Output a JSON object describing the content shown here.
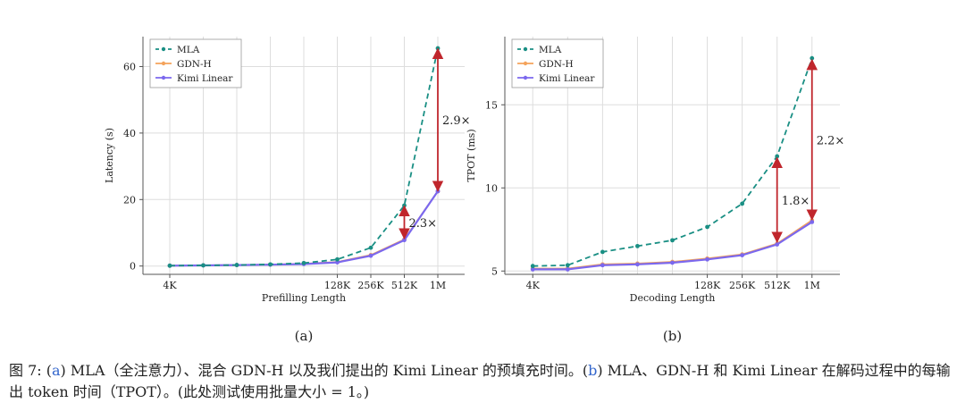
{
  "colors": {
    "mla": "#1a8f84",
    "gdn": "#f4a35c",
    "kimi": "#7b68ee",
    "arrow": "#c0262c",
    "grid": "#dddddd",
    "axis": "#555555"
  },
  "chart_data": [
    {
      "type": "line",
      "panel": "a",
      "panel_label": "(a)",
      "xlabel": "Prefilling Length",
      "ylabel": "Latency (s)",
      "x": [
        1,
        2,
        3,
        4,
        5,
        6,
        7,
        8,
        9
      ],
      "xlim": [
        0.2,
        9.8
      ],
      "ylim": [
        -2.5,
        69
      ],
      "xticks": [
        {
          "x": 1,
          "label": "4K"
        },
        {
          "x": 6,
          "label": "128K"
        },
        {
          "x": 7,
          "label": "256K"
        },
        {
          "x": 8,
          "label": "512K"
        },
        {
          "x": 9,
          "label": "1M"
        }
      ],
      "xgrid": [
        1,
        2,
        3,
        4,
        5,
        6,
        7,
        8,
        9
      ],
      "yticks": [
        0,
        20,
        40,
        60
      ],
      "series": [
        {
          "name": "MLA",
          "style": "dashed",
          "values": [
            0.1,
            0.2,
            0.3,
            0.5,
            0.9,
            2.0,
            5.5,
            18.2,
            65.5
          ]
        },
        {
          "name": "GDN-H",
          "style": "solid",
          "values": [
            0.1,
            0.2,
            0.3,
            0.45,
            0.7,
            1.2,
            3.3,
            8.0,
            22.5
          ]
        },
        {
          "name": "Kimi Linear",
          "style": "solid",
          "values": [
            0.1,
            0.2,
            0.3,
            0.4,
            0.6,
            1.1,
            3.1,
            7.8,
            22.5
          ]
        }
      ],
      "legend": "top-left",
      "annotations": [
        {
          "x": 8,
          "from": 8.3,
          "to": 18.0,
          "label": "2.3×",
          "label_side": "right"
        },
        {
          "x": 9,
          "from": 22.6,
          "to": 65.3,
          "label": "2.9×",
          "label_side": "right"
        }
      ]
    },
    {
      "type": "line",
      "panel": "b",
      "panel_label": "(b)",
      "xlabel": "Decoding Length",
      "ylabel": "TPOT (ms)",
      "x": [
        1,
        2,
        3,
        4,
        5,
        6,
        7,
        8,
        9
      ],
      "xlim": [
        0.2,
        9.8
      ],
      "ylim": [
        4.8,
        19.1
      ],
      "xticks": [
        {
          "x": 1,
          "label": "4K"
        },
        {
          "x": 6,
          "label": "128K"
        },
        {
          "x": 7,
          "label": "256K"
        },
        {
          "x": 8,
          "label": "512K"
        },
        {
          "x": 9,
          "label": "1M"
        }
      ],
      "xgrid": [
        1,
        2,
        3,
        4,
        5,
        6,
        7,
        8,
        9
      ],
      "yticks": [
        5,
        10,
        15
      ],
      "series": [
        {
          "name": "MLA",
          "style": "dashed",
          "values": [
            5.3,
            5.35,
            6.15,
            6.5,
            6.85,
            7.65,
            9.05,
            11.9,
            17.8
          ]
        },
        {
          "name": "GDN-H",
          "style": "solid",
          "values": [
            5.15,
            5.15,
            5.4,
            5.45,
            5.55,
            5.75,
            6.0,
            6.65,
            8.05
          ]
        },
        {
          "name": "Kimi Linear",
          "style": "solid",
          "values": [
            5.1,
            5.1,
            5.35,
            5.4,
            5.5,
            5.7,
            5.95,
            6.6,
            7.95
          ]
        }
      ],
      "legend": "top-left",
      "annotations": [
        {
          "x": 8,
          "from": 6.75,
          "to": 11.8,
          "label": "1.8×",
          "label_side": "right"
        },
        {
          "x": 9,
          "from": 8.1,
          "to": 17.7,
          "label": "2.2×",
          "label_side": "right"
        }
      ]
    }
  ],
  "caption": {
    "prefix": "图 7: (",
    "ref_a": "a",
    "part_a": ") MLA（全注意力）、混合 GDN-H 以及我们提出的 Kimi Linear 的预填充时间。(",
    "ref_b": "b",
    "part_b": ") MLA、GDN-H 和 Kimi Linear 在解码过程中的每输出 token 时间（TPOT）。(此处测试使用批量大小 = 1。)"
  }
}
